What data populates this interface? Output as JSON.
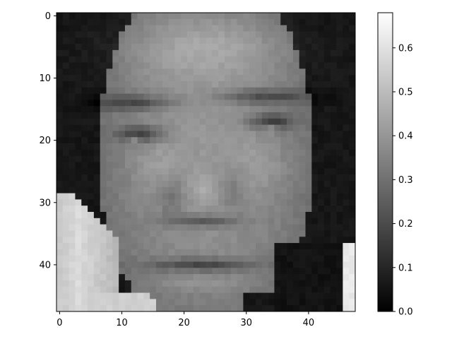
{
  "chart_data": {
    "type": "heatmap",
    "title": "",
    "xlabel": "",
    "ylabel": "",
    "image_shape": [
      48,
      48
    ],
    "xlim": [
      -0.5,
      47.5
    ],
    "ylim": [
      47.5,
      -0.5
    ],
    "x_ticks": [
      0,
      10,
      20,
      30,
      40
    ],
    "y_ticks": [
      0,
      10,
      20,
      30,
      40
    ],
    "x_tick_labels": [
      "0",
      "10",
      "20",
      "30",
      "40"
    ],
    "y_tick_labels": [
      "0",
      "10",
      "20",
      "30",
      "40"
    ],
    "colormap": "gray",
    "color_range": [
      0.0,
      0.68
    ],
    "colorbar_ticks": [
      0.0,
      0.1,
      0.2,
      0.3,
      0.4,
      0.5,
      0.6
    ],
    "colorbar_tick_labels": [
      "0.0",
      "0.1",
      "0.2",
      "0.3",
      "0.4",
      "0.5",
      "0.6"
    ],
    "grid": false,
    "depicted_content": "48x48 grayscale face image (approximate pixel intensities)"
  },
  "colors": {
    "background": "#ffffff",
    "axis": "#000000",
    "cmap_low": "#000000",
    "cmap_high": "#ffffff"
  }
}
